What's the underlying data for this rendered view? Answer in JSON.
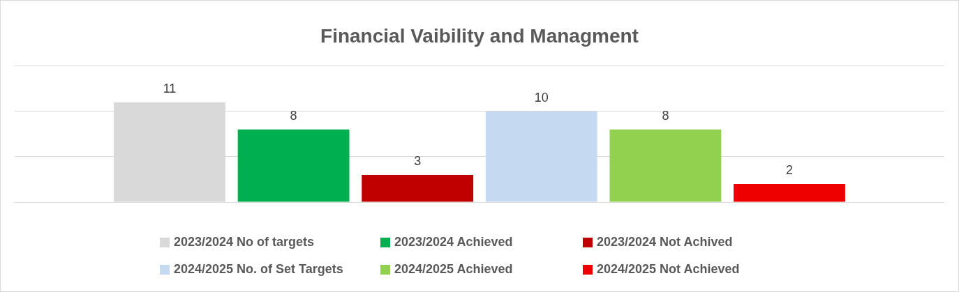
{
  "chart_data": {
    "type": "bar",
    "title": "Financial Vaibility and Managment",
    "categories": [
      null
    ],
    "series": [
      {
        "name": "2023/2024 No of targets",
        "color": "#d9d9d9",
        "values": [
          11
        ]
      },
      {
        "name": "2023/2024 Achieved",
        "color": "#00b050",
        "values": [
          8
        ]
      },
      {
        "name": "2023/2024 Not Achived",
        "color": "#c00000",
        "values": [
          3
        ]
      },
      {
        "name": "2024/2025 No. of Set Targets",
        "color": "#c5d9f1",
        "values": [
          10
        ]
      },
      {
        "name": "2024/2025 Achieved",
        "color": "#92d050",
        "values": [
          8
        ]
      },
      {
        "name": "2024/2025 Not Achieved",
        "color": "#ee0000",
        "values": [
          2
        ]
      }
    ],
    "ylim": [
      0,
      15
    ],
    "yticks": [
      0,
      5,
      10,
      15
    ],
    "grid": "y",
    "tick_labels": false,
    "legend": "bottom",
    "data_labels": true
  }
}
